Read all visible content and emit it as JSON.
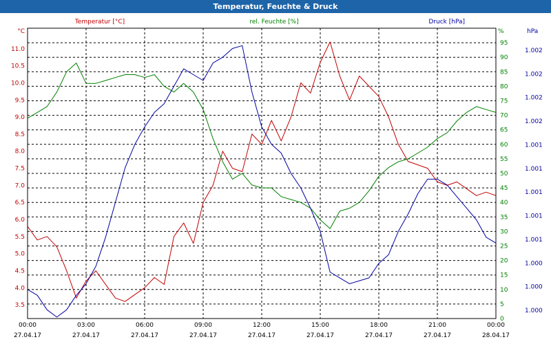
{
  "window": {
    "title": "Temperatur, Feuchte & Druck"
  },
  "chart_data": {
    "type": "line",
    "title": "Temperatur, Feuchte & Druck",
    "colors": {
      "temperature": "#c00000",
      "humidity": "#008000",
      "pressure": "#0000a0",
      "grid": "#000000"
    },
    "x_ticks": [
      {
        "time": "00:00",
        "date": "27.04.17"
      },
      {
        "time": "03:00",
        "date": "27.04.17"
      },
      {
        "time": "06:00",
        "date": "27.04.17"
      },
      {
        "time": "09:00",
        "date": "27.04.17"
      },
      {
        "time": "12:00",
        "date": "27.04.17"
      },
      {
        "time": "15:00",
        "date": "27.04.17"
      },
      {
        "time": "18:00",
        "date": "27.04.17"
      },
      {
        "time": "21:00",
        "date": "27.04.17"
      },
      {
        "time": "00:00",
        "date": "28.04.17"
      }
    ],
    "xlim_hours": [
      0,
      24
    ],
    "axes": {
      "temperature": {
        "label": "Temperatur [°C]",
        "unit": "°C",
        "min": 3.1,
        "max": 11.6,
        "ticks": [
          "3.5",
          "4.0",
          "4.5",
          "5.0",
          "5.5",
          "6.0",
          "6.5",
          "7.0",
          "7.5",
          "8.0",
          "8.5",
          "9.0",
          "9.5",
          "10.0",
          "10.5",
          "11.0"
        ]
      },
      "humidity": {
        "label": "rel. Feuchte [%]",
        "unit": "%",
        "min": 0,
        "max": 100,
        "ticks": [
          "0",
          "5",
          "10",
          "15",
          "20",
          "25",
          "30",
          "35",
          "40",
          "45",
          "50",
          "55",
          "60",
          "65",
          "70",
          "75",
          "80",
          "85",
          "90",
          "95"
        ]
      },
      "pressure": {
        "label": "Druck [hPa]",
        "unit": "hPa",
        "ticks": [
          "1.000",
          "1.000",
          "1.000",
          "1.001",
          "1.001",
          "1.001",
          "1.001",
          "1.001",
          "1.002",
          "1.002",
          "1.002",
          "1.002"
        ]
      }
    },
    "series": [
      {
        "name": "Temperatur",
        "color": "#c00000",
        "x": [
          0,
          0.5,
          1,
          1.5,
          2,
          2.5,
          3,
          3.5,
          4,
          4.5,
          5,
          5.5,
          6,
          6.5,
          7,
          7.5,
          8,
          8.5,
          9,
          9.5,
          10,
          10.5,
          11,
          11.5,
          12,
          12.5,
          13,
          13.5,
          14,
          14.5,
          15,
          15.5,
          16,
          16.5,
          17,
          17.5,
          18,
          18.5,
          19,
          19.5,
          20,
          20.5,
          21,
          21.5,
          22,
          22.5,
          23,
          23.5,
          24
        ],
        "values": [
          5.8,
          5.4,
          5.5,
          5.2,
          4.5,
          3.7,
          4.2,
          4.5,
          4.1,
          3.7,
          3.6,
          3.8,
          4.0,
          4.3,
          4.1,
          5.5,
          5.9,
          5.3,
          6.5,
          7.0,
          8.0,
          7.5,
          7.4,
          8.5,
          8.2,
          8.9,
          8.3,
          9.0,
          10.0,
          9.7,
          10.6,
          11.2,
          10.2,
          9.5,
          10.2,
          9.9,
          9.6,
          9.0,
          8.2,
          7.7,
          7.6,
          7.5,
          7.1,
          7.0,
          7.1,
          6.9,
          6.7,
          6.8,
          6.7
        ]
      },
      {
        "name": "rel. Feuchte",
        "color": "#008000",
        "x": [
          0,
          0.5,
          1,
          1.5,
          2,
          2.5,
          3,
          3.5,
          4,
          4.5,
          5,
          5.5,
          6,
          6.5,
          7,
          7.5,
          8,
          8.5,
          9,
          9.5,
          10,
          10.5,
          11,
          11.5,
          12,
          12.5,
          13,
          13.5,
          14,
          14.5,
          15,
          15.5,
          16,
          16.5,
          17,
          17.5,
          18,
          18.5,
          19,
          19.5,
          20,
          20.5,
          21,
          21.5,
          22,
          22.5,
          23,
          23.5,
          24
        ],
        "values": [
          69,
          71,
          73,
          78,
          85,
          88,
          81,
          81,
          82,
          83,
          84,
          84,
          83,
          84,
          80,
          78,
          81,
          78,
          72,
          62,
          54,
          48,
          50,
          46,
          45,
          45,
          42,
          41,
          40,
          38,
          34,
          31,
          37,
          38,
          40,
          44,
          49,
          52,
          54,
          55,
          57,
          59,
          62,
          64,
          68,
          71,
          73,
          72,
          71
        ]
      },
      {
        "name": "Druck",
        "color": "#0000a0",
        "x": [
          0,
          0.5,
          1,
          1.5,
          2,
          2.5,
          3,
          3.5,
          4,
          4.5,
          5,
          5.5,
          6,
          6.5,
          7,
          7.5,
          8,
          8.5,
          9,
          9.5,
          10,
          10.5,
          11,
          11.5,
          12,
          12.5,
          13,
          13.5,
          14,
          14.5,
          15,
          15.5,
          16,
          16.5,
          17,
          17.5,
          18,
          18.5,
          19,
          19.5,
          20,
          20.5,
          21,
          21.5,
          22,
          22.5,
          23,
          23.5,
          24
        ],
        "values": [
          10.0,
          8.0,
          3.0,
          0.5,
          3.0,
          8.0,
          12.0,
          18.0,
          28.0,
          40.0,
          52.0,
          60.0,
          66.0,
          71.0,
          74.0,
          80.0,
          86.0,
          84.0,
          82.0,
          88.0,
          90.0,
          93.0,
          94.0,
          78.0,
          66.0,
          60.0,
          57.0,
          50.0,
          45.0,
          38.0,
          30.0,
          16.0,
          14.0,
          12.0,
          13.0,
          14.0,
          19.0,
          22.0,
          30.0,
          36.0,
          43.0,
          48.0,
          48.0,
          46.0,
          42.0,
          38.0,
          34.0,
          28.0,
          26.0
        ]
      }
    ]
  }
}
